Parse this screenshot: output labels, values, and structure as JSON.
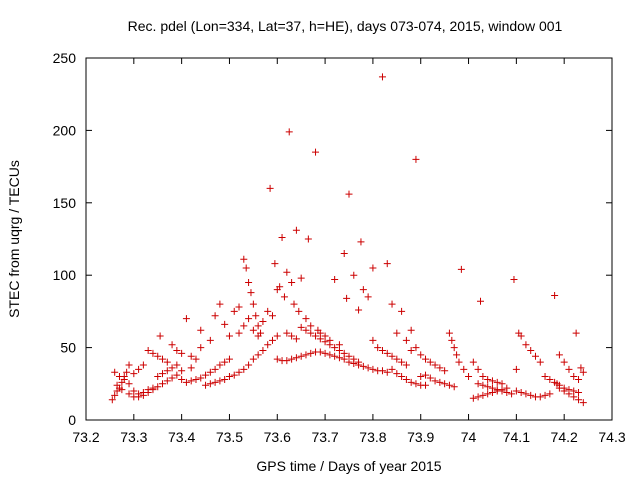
{
  "chart_data": {
    "type": "scatter",
    "title": "Rec. pdel (Lon=334, Lat=37, h=HE), days 073-074, 2015, window 001",
    "xlabel": "GPS time / Days of year 2015",
    "ylabel": "STEC from uqrg / TECUs",
    "xlim": [
      73.2,
      74.3
    ],
    "ylim": [
      0,
      250
    ],
    "xticks": [
      73.2,
      73.3,
      73.4,
      73.5,
      73.6,
      73.7,
      73.8,
      73.9,
      74.0,
      74.1,
      74.2,
      74.3
    ],
    "xtick_labels": [
      "73.2",
      "73.3",
      "73.4",
      "73.5",
      "73.6",
      "73.7",
      "73.8",
      "73.9",
      "74",
      "74.1",
      "74.2",
      "74.3"
    ],
    "yticks": [
      0,
      50,
      100,
      150,
      200,
      250
    ],
    "ytick_labels": [
      "0",
      "50",
      "100",
      "150",
      "200",
      "250"
    ],
    "grid": false,
    "marker": "+",
    "color": "#cc0000",
    "series": [
      {
        "name": "STEC",
        "points": [
          [
            73.255,
            14
          ],
          [
            73.26,
            17
          ],
          [
            73.265,
            20
          ],
          [
            73.27,
            22
          ],
          [
            73.275,
            26
          ],
          [
            73.28,
            30
          ],
          [
            73.285,
            33
          ],
          [
            73.29,
            38
          ],
          [
            73.26,
            33
          ],
          [
            73.27,
            30
          ],
          [
            73.28,
            28
          ],
          [
            73.29,
            25
          ],
          [
            73.3,
            20
          ],
          [
            73.31,
            18
          ],
          [
            73.32,
            19
          ],
          [
            73.33,
            21
          ],
          [
            73.34,
            22
          ],
          [
            73.35,
            23
          ],
          [
            73.36,
            25
          ],
          [
            73.37,
            27
          ],
          [
            73.38,
            29
          ],
          [
            73.39,
            31
          ],
          [
            73.4,
            34
          ],
          [
            73.42,
            36
          ],
          [
            73.265,
            24
          ],
          [
            73.275,
            21
          ],
          [
            73.29,
            18
          ],
          [
            73.3,
            16
          ],
          [
            73.31,
            16
          ],
          [
            73.32,
            17
          ],
          [
            73.33,
            19
          ],
          [
            73.34,
            21
          ],
          [
            73.3,
            32
          ],
          [
            73.31,
            35
          ],
          [
            73.32,
            38
          ],
          [
            73.33,
            48
          ],
          [
            73.34,
            46
          ],
          [
            73.35,
            44
          ],
          [
            73.355,
            58
          ],
          [
            73.36,
            42
          ],
          [
            73.37,
            40
          ],
          [
            73.38,
            52
          ],
          [
            73.39,
            48
          ],
          [
            73.4,
            46
          ],
          [
            73.41,
            70
          ],
          [
            73.42,
            44
          ],
          [
            73.43,
            42
          ],
          [
            73.44,
            50
          ],
          [
            73.35,
            30
          ],
          [
            73.36,
            32
          ],
          [
            73.37,
            34
          ],
          [
            73.38,
            36
          ],
          [
            73.39,
            38
          ],
          [
            73.4,
            28
          ],
          [
            73.41,
            26
          ],
          [
            73.42,
            27
          ],
          [
            73.43,
            28
          ],
          [
            73.44,
            29
          ],
          [
            73.45,
            31
          ],
          [
            73.46,
            33
          ],
          [
            73.47,
            35
          ],
          [
            73.48,
            38
          ],
          [
            73.49,
            40
          ],
          [
            73.5,
            42
          ],
          [
            73.44,
            62
          ],
          [
            73.46,
            55
          ],
          [
            73.47,
            72
          ],
          [
            73.48,
            80
          ],
          [
            73.49,
            66
          ],
          [
            73.5,
            58
          ],
          [
            73.51,
            75
          ],
          [
            73.52,
            78
          ],
          [
            73.45,
            24
          ],
          [
            73.46,
            25
          ],
          [
            73.47,
            26
          ],
          [
            73.48,
            27
          ],
          [
            73.49,
            28
          ],
          [
            73.5,
            30
          ],
          [
            73.51,
            31
          ],
          [
            73.52,
            33
          ],
          [
            73.53,
            35
          ],
          [
            73.54,
            38
          ],
          [
            73.55,
            42
          ],
          [
            73.56,
            45
          ],
          [
            73.57,
            48
          ],
          [
            73.58,
            52
          ],
          [
            73.59,
            55
          ],
          [
            73.6,
            58
          ],
          [
            73.53,
            111
          ],
          [
            73.535,
            105
          ],
          [
            73.54,
            95
          ],
          [
            73.545,
            88
          ],
          [
            73.55,
            80
          ],
          [
            73.555,
            72
          ],
          [
            73.56,
            65
          ],
          [
            73.565,
            60
          ],
          [
            73.52,
            60
          ],
          [
            73.53,
            65
          ],
          [
            73.54,
            70
          ],
          [
            73.55,
            62
          ],
          [
            73.56,
            58
          ],
          [
            73.57,
            68
          ],
          [
            73.58,
            75
          ],
          [
            73.585,
            160
          ],
          [
            73.59,
            72
          ],
          [
            73.595,
            108
          ],
          [
            73.6,
            90
          ],
          [
            73.605,
            92
          ],
          [
            73.61,
            126
          ],
          [
            73.615,
            85
          ],
          [
            73.62,
            102
          ],
          [
            73.625,
            199
          ],
          [
            73.63,
            95
          ],
          [
            73.635,
            80
          ],
          [
            73.64,
            131
          ],
          [
            73.645,
            75
          ],
          [
            73.65,
            98
          ],
          [
            73.66,
            70
          ],
          [
            73.665,
            125
          ],
          [
            73.67,
            65
          ],
          [
            73.68,
            185
          ],
          [
            73.685,
            62
          ],
          [
            73.69,
            60
          ],
          [
            73.7,
            58
          ],
          [
            73.71,
            55
          ],
          [
            73.72,
            97
          ],
          [
            73.73,
            52
          ],
          [
            73.74,
            115
          ],
          [
            73.745,
            84
          ],
          [
            73.75,
            156
          ],
          [
            73.76,
            100
          ],
          [
            73.77,
            76
          ],
          [
            73.775,
            123
          ],
          [
            73.78,
            90
          ],
          [
            73.79,
            85
          ],
          [
            73.8,
            105
          ],
          [
            73.82,
            237
          ],
          [
            73.83,
            108
          ],
          [
            73.84,
            80
          ],
          [
            73.85,
            60
          ],
          [
            73.86,
            75
          ],
          [
            73.87,
            55
          ],
          [
            73.88,
            62
          ],
          [
            73.89,
            180
          ],
          [
            73.6,
            42
          ],
          [
            73.61,
            41
          ],
          [
            73.62,
            41
          ],
          [
            73.63,
            42
          ],
          [
            73.64,
            43
          ],
          [
            73.65,
            44
          ],
          [
            73.66,
            45
          ],
          [
            73.67,
            46
          ],
          [
            73.68,
            47
          ],
          [
            73.69,
            47
          ],
          [
            73.7,
            46
          ],
          [
            73.71,
            45
          ],
          [
            73.72,
            44
          ],
          [
            73.73,
            43
          ],
          [
            73.74,
            42
          ],
          [
            73.75,
            40
          ],
          [
            73.76,
            39
          ],
          [
            73.77,
            38
          ],
          [
            73.78,
            37
          ],
          [
            73.79,
            36
          ],
          [
            73.8,
            35
          ],
          [
            73.81,
            34
          ],
          [
            73.82,
            34
          ],
          [
            73.83,
            33
          ],
          [
            73.62,
            60
          ],
          [
            73.63,
            58
          ],
          [
            73.64,
            56
          ],
          [
            73.65,
            64
          ],
          [
            73.66,
            62
          ],
          [
            73.67,
            60
          ],
          [
            73.68,
            58
          ],
          [
            73.69,
            56
          ],
          [
            73.7,
            54
          ],
          [
            73.71,
            52
          ],
          [
            73.72,
            50
          ],
          [
            73.73,
            48
          ],
          [
            73.74,
            46
          ],
          [
            73.75,
            44
          ],
          [
            73.76,
            42
          ],
          [
            73.77,
            40
          ],
          [
            73.8,
            55
          ],
          [
            73.81,
            50
          ],
          [
            73.82,
            48
          ],
          [
            73.83,
            46
          ],
          [
            73.84,
            44
          ],
          [
            73.85,
            42
          ],
          [
            73.86,
            40
          ],
          [
            73.87,
            38
          ],
          [
            73.84,
            35
          ],
          [
            73.85,
            32
          ],
          [
            73.86,
            30
          ],
          [
            73.87,
            28
          ],
          [
            73.88,
            26
          ],
          [
            73.89,
            25
          ],
          [
            73.9,
            24
          ],
          [
            73.91,
            24
          ],
          [
            73.88,
            48
          ],
          [
            73.89,
            50
          ],
          [
            73.9,
            45
          ],
          [
            73.91,
            42
          ],
          [
            73.92,
            40
          ],
          [
            73.93,
            38
          ],
          [
            73.94,
            36
          ],
          [
            73.95,
            34
          ],
          [
            73.9,
            30
          ],
          [
            73.91,
            31
          ],
          [
            73.92,
            29
          ],
          [
            73.93,
            27
          ],
          [
            73.94,
            26
          ],
          [
            73.95,
            25
          ],
          [
            73.96,
            24
          ],
          [
            73.97,
            23
          ],
          [
            73.96,
            60
          ],
          [
            73.965,
            55
          ],
          [
            73.97,
            50
          ],
          [
            73.975,
            45
          ],
          [
            73.98,
            40
          ],
          [
            73.985,
            104
          ],
          [
            73.99,
            35
          ],
          [
            74.0,
            30
          ],
          [
            74.01,
            40
          ],
          [
            74.02,
            35
          ],
          [
            74.025,
            82
          ],
          [
            74.03,
            30
          ],
          [
            74.04,
            28
          ],
          [
            74.05,
            27
          ],
          [
            74.06,
            26
          ],
          [
            74.07,
            25
          ],
          [
            74.01,
            15
          ],
          [
            74.02,
            16
          ],
          [
            74.03,
            17
          ],
          [
            74.04,
            18
          ],
          [
            74.05,
            19
          ],
          [
            74.06,
            20
          ],
          [
            74.07,
            21
          ],
          [
            74.08,
            22
          ],
          [
            74.02,
            25
          ],
          [
            74.03,
            24
          ],
          [
            74.04,
            23
          ],
          [
            74.05,
            22
          ],
          [
            74.06,
            21
          ],
          [
            74.07,
            20
          ],
          [
            74.08,
            19
          ],
          [
            74.09,
            18
          ],
          [
            74.095,
            97
          ],
          [
            74.1,
            35
          ],
          [
            74.105,
            60
          ],
          [
            74.11,
            58
          ],
          [
            74.12,
            52
          ],
          [
            74.13,
            48
          ],
          [
            74.14,
            44
          ],
          [
            74.15,
            40
          ],
          [
            74.1,
            20
          ],
          [
            74.11,
            19
          ],
          [
            74.12,
            18
          ],
          [
            74.13,
            17
          ],
          [
            74.14,
            16
          ],
          [
            74.15,
            16
          ],
          [
            74.16,
            17
          ],
          [
            74.17,
            18
          ],
          [
            74.18,
            86
          ],
          [
            74.185,
            25
          ],
          [
            74.19,
            22
          ],
          [
            74.2,
            20
          ],
          [
            74.21,
            18
          ],
          [
            74.22,
            16
          ],
          [
            74.23,
            14
          ],
          [
            74.24,
            12
          ],
          [
            74.19,
            45
          ],
          [
            74.2,
            40
          ],
          [
            74.21,
            35
          ],
          [
            74.22,
            30
          ],
          [
            74.225,
            60
          ],
          [
            74.23,
            28
          ],
          [
            74.235,
            36
          ],
          [
            74.24,
            33
          ],
          [
            74.16,
            30
          ],
          [
            74.17,
            28
          ],
          [
            74.18,
            26
          ],
          [
            74.19,
            24
          ],
          [
            74.2,
            22
          ],
          [
            74.21,
            21
          ],
          [
            74.22,
            20
          ],
          [
            74.23,
            19
          ]
        ]
      }
    ]
  }
}
